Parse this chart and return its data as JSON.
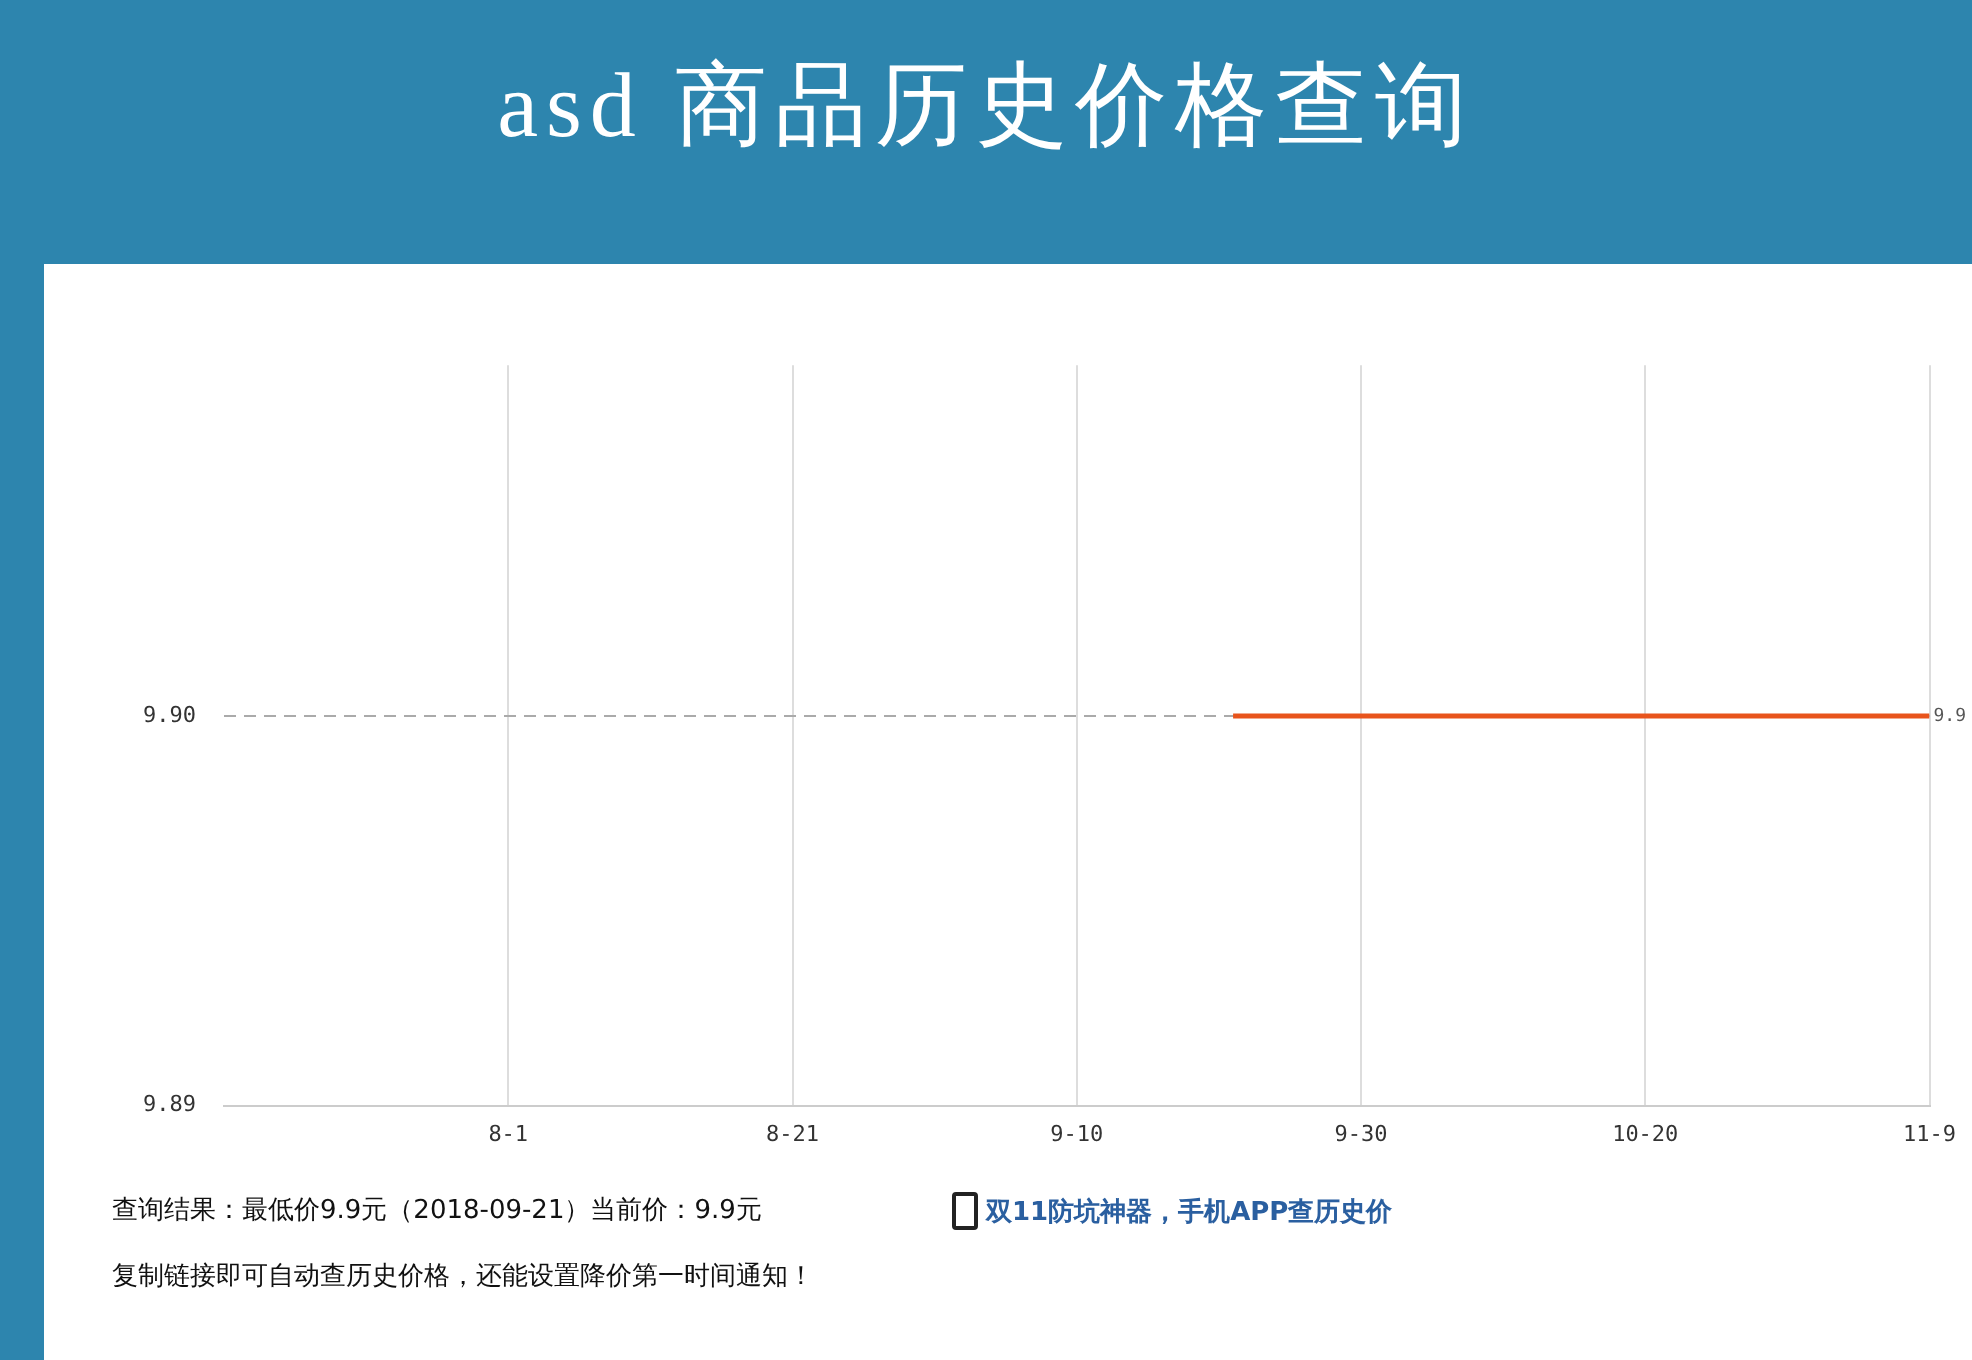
{
  "chart_data": {
    "type": "line",
    "title": "asd 商品历史价格查询",
    "x": [
      "2018-09-21",
      "2018-11-09"
    ],
    "series": [
      {
        "color": "#e8541c",
        "values": [
          9.9,
          9.9
        ],
        "value_labels": [
          null,
          "9.9"
        ]
      }
    ],
    "xlim": [
      "2018-07-12",
      "2018-11-09"
    ],
    "xticks": [
      {
        "value": "2018-08-01",
        "label": "8-1"
      },
      {
        "value": "2018-08-21",
        "label": "8-21"
      },
      {
        "value": "2018-09-10",
        "label": "9-10"
      },
      {
        "value": "2018-09-30",
        "label": "9-30"
      },
      {
        "value": "2018-10-20",
        "label": "10-20"
      },
      {
        "value": "2018-11-09",
        "label": "11-9"
      }
    ],
    "ylim": [
      9.89,
      9.909
    ],
    "yticks": [
      {
        "value": 9.89,
        "label": "9.89"
      },
      {
        "value": 9.9,
        "label": "9.90"
      }
    ],
    "grid": "x",
    "ref_lines": [
      {
        "axis": "y",
        "value": 9.9,
        "color": "#aaaaaa",
        "line_style": "dashed"
      }
    ],
    "marker": "none",
    "line_style": "solid",
    "legend": false,
    "annotations": [
      "查询结果：最低价9.9元（2018-09-21）当前价：9.9元",
      "双11防坑神器，手机APP查历史价",
      "复制链接即可自动查历史价格，还能设置降价第一时间通知！"
    ]
  }
}
